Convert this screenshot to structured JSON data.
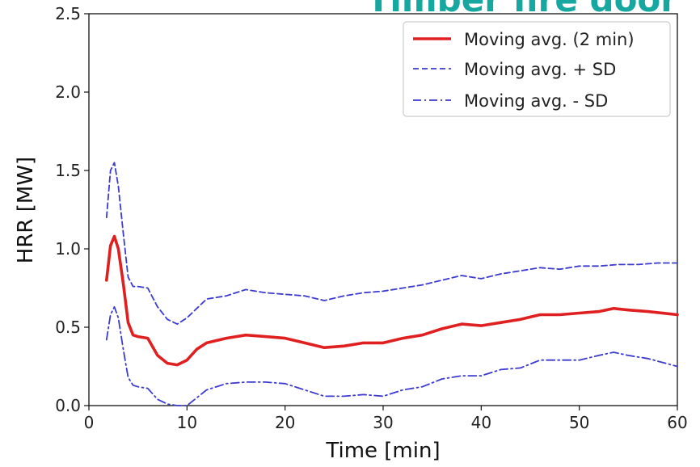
{
  "banner_text": "Timber fire door",
  "colors": {
    "moving_avg": "#e02020",
    "plus_sd": "#3b3bd0",
    "minus_sd": "#3b3bd0",
    "banner": "#16a8a0"
  },
  "chart_data": {
    "type": "line",
    "xlabel": "Time [min]",
    "ylabel": "HRR [MW]",
    "xlim": [
      0,
      60
    ],
    "ylim": [
      0.0,
      2.5
    ],
    "xticks": [
      "0",
      "10",
      "20",
      "30",
      "40",
      "50",
      "60"
    ],
    "yticks": [
      "0.0",
      "0.5",
      "1.0",
      "1.5",
      "2.0",
      "2.5"
    ],
    "grid": false,
    "legend_position": "top-right",
    "series": [
      {
        "name": "Moving avg. (2 min)",
        "style": "solid",
        "x": [
          1.8,
          2.2,
          2.6,
          3.0,
          3.5,
          4.0,
          4.5,
          5.0,
          6.0,
          7.0,
          8.0,
          9.0,
          10.0,
          11.0,
          12.0,
          14.0,
          16.0,
          18.0,
          20.0,
          22.0,
          24.0,
          26.0,
          28.0,
          30.0,
          32.0,
          34.0,
          36.0,
          38.0,
          40.0,
          42.0,
          44.0,
          46.0,
          48.0,
          50.0,
          52.0,
          53.5,
          55.0,
          57.0,
          60.0
        ],
        "y": [
          0.8,
          1.02,
          1.08,
          1.0,
          0.78,
          0.53,
          0.45,
          0.44,
          0.43,
          0.32,
          0.27,
          0.26,
          0.29,
          0.36,
          0.4,
          0.43,
          0.45,
          0.44,
          0.43,
          0.4,
          0.37,
          0.38,
          0.4,
          0.4,
          0.43,
          0.45,
          0.49,
          0.52,
          0.51,
          0.53,
          0.55,
          0.58,
          0.58,
          0.59,
          0.6,
          0.62,
          0.61,
          0.6,
          0.58
        ]
      },
      {
        "name": "Moving avg. + SD",
        "style": "dashed",
        "x": [
          1.8,
          2.2,
          2.6,
          3.0,
          3.5,
          4.0,
          4.5,
          5.0,
          6.0,
          7.0,
          8.0,
          9.0,
          10.0,
          11.0,
          12.0,
          14.0,
          16.0,
          18.0,
          20.0,
          22.0,
          24.0,
          26.0,
          28.0,
          30.0,
          32.0,
          34.0,
          36.0,
          38.0,
          40.0,
          42.0,
          44.0,
          46.0,
          48.0,
          50.0,
          52.0,
          54.0,
          56.0,
          58.0,
          60.0
        ],
        "y": [
          1.2,
          1.5,
          1.55,
          1.4,
          1.1,
          0.82,
          0.76,
          0.76,
          0.75,
          0.63,
          0.55,
          0.52,
          0.56,
          0.62,
          0.68,
          0.7,
          0.74,
          0.72,
          0.71,
          0.7,
          0.67,
          0.7,
          0.72,
          0.73,
          0.75,
          0.77,
          0.8,
          0.83,
          0.81,
          0.84,
          0.86,
          0.88,
          0.87,
          0.89,
          0.89,
          0.9,
          0.9,
          0.91,
          0.91
        ]
      },
      {
        "name": "Moving avg. - SD",
        "style": "dashdot",
        "x": [
          1.8,
          2.2,
          2.6,
          3.0,
          3.5,
          4.0,
          4.5,
          5.0,
          6.0,
          7.0,
          8.0,
          9.0,
          10.0,
          11.0,
          12.0,
          14.0,
          16.0,
          18.0,
          20.0,
          22.0,
          24.0,
          26.0,
          28.0,
          30.0,
          32.0,
          34.0,
          36.0,
          38.0,
          40.0,
          42.0,
          44.0,
          46.0,
          48.0,
          50.0,
          52.0,
          53.5,
          55.0,
          57.0,
          60.0
        ],
        "y": [
          0.42,
          0.58,
          0.63,
          0.56,
          0.36,
          0.18,
          0.13,
          0.12,
          0.11,
          0.04,
          0.01,
          0.0,
          0.0,
          0.05,
          0.1,
          0.14,
          0.15,
          0.15,
          0.14,
          0.1,
          0.06,
          0.06,
          0.07,
          0.06,
          0.1,
          0.12,
          0.17,
          0.19,
          0.19,
          0.23,
          0.24,
          0.29,
          0.29,
          0.29,
          0.32,
          0.34,
          0.32,
          0.3,
          0.25
        ]
      }
    ]
  }
}
